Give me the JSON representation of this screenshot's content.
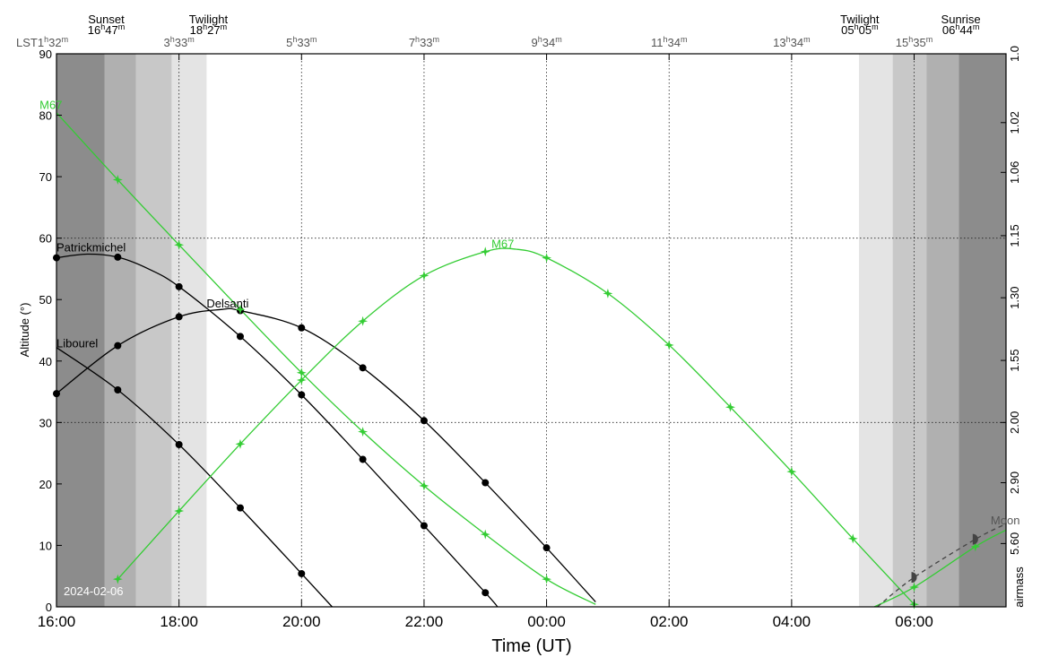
{
  "chart_data": {
    "type": "line",
    "date_label": "2024-02-06",
    "xlabel": "Time (UT)",
    "ylabel": "Altitude (°)",
    "y2label": "airmass",
    "xlim": [
      16.0,
      31.5
    ],
    "ylim": [
      0,
      90
    ],
    "x_ticks": [
      {
        "x": 16,
        "label": "16:00"
      },
      {
        "x": 18,
        "label": "18:00"
      },
      {
        "x": 20,
        "label": "20:00"
      },
      {
        "x": 22,
        "label": "22:00"
      },
      {
        "x": 24,
        "label": "00:00"
      },
      {
        "x": 26,
        "label": "02:00"
      },
      {
        "x": 28,
        "label": "04:00"
      },
      {
        "x": 30,
        "label": "06:00"
      }
    ],
    "y_ticks": [
      0,
      10,
      20,
      30,
      40,
      50,
      60,
      70,
      80,
      90
    ],
    "airmass_ticks": [
      {
        "alt": 90,
        "label": "1.0"
      },
      {
        "alt": 78.8,
        "label": "1.02"
      },
      {
        "alt": 70.7,
        "label": "1.06"
      },
      {
        "alt": 60.4,
        "label": "1.15"
      },
      {
        "alt": 50.3,
        "label": "1.30"
      },
      {
        "alt": 40.1,
        "label": "1.55"
      },
      {
        "alt": 30.0,
        "label": "2.00"
      },
      {
        "alt": 20.2,
        "label": "2.90"
      },
      {
        "alt": 10.3,
        "label": "5.60"
      }
    ],
    "lst_prefix": "LST",
    "lst_ticks": [
      {
        "x": 16.0,
        "h": "1",
        "m": "32"
      },
      {
        "x": 18.0,
        "h": "3",
        "m": "33"
      },
      {
        "x": 20.0,
        "h": "5",
        "m": "33"
      },
      {
        "x": 22.0,
        "h": "7",
        "m": "33"
      },
      {
        "x": 24.0,
        "h": "9",
        "m": "34"
      },
      {
        "x": 26.0,
        "h": "11",
        "m": "34"
      },
      {
        "x": 28.0,
        "h": "13",
        "m": "34"
      },
      {
        "x": 30.0,
        "h": "15",
        "m": "35"
      }
    ],
    "events": [
      {
        "name": "Sunset",
        "x": 16.783,
        "h": "16",
        "m": "47"
      },
      {
        "name": "Twilight",
        "x": 18.45,
        "h": "18",
        "m": "27"
      },
      {
        "name": "Twilight",
        "x": 29.083,
        "h": "05",
        "m": "05"
      },
      {
        "name": "Sunrise",
        "x": 30.733,
        "h": "06",
        "m": "44"
      }
    ],
    "night_bands": [
      {
        "x0": 16.0,
        "x1": 16.783,
        "color": "#8c8c8c"
      },
      {
        "x0": 16.783,
        "x1": 17.3,
        "color": "#b0b0b0"
      },
      {
        "x0": 17.3,
        "x1": 17.88,
        "color": "#c8c8c8"
      },
      {
        "x0": 17.88,
        "x1": 18.45,
        "color": "#e4e4e4"
      },
      {
        "x0": 29.1,
        "x1": 29.65,
        "color": "#e4e4e4"
      },
      {
        "x0": 29.65,
        "x1": 30.2,
        "color": "#c8c8c8"
      },
      {
        "x0": 30.2,
        "x1": 30.73,
        "color": "#b0b0b0"
      },
      {
        "x0": 30.73,
        "x1": 31.5,
        "color": "#8c8c8c"
      }
    ],
    "series": [
      {
        "name": "Patrickmichel",
        "color": "#000000",
        "marker": "circle",
        "curve": [
          [
            16.0,
            56.8
          ],
          [
            16.5,
            57.4
          ],
          [
            17.0,
            56.9
          ],
          [
            17.5,
            55.0
          ],
          [
            18.0,
            52.1
          ],
          [
            19.0,
            44.0
          ],
          [
            20.0,
            34.5
          ],
          [
            21.0,
            24.0
          ],
          [
            22.0,
            13.2
          ],
          [
            23.0,
            2.3
          ],
          [
            23.2,
            0
          ]
        ],
        "points": [
          [
            16.0,
            56.8
          ],
          [
            17.0,
            56.9
          ],
          [
            18.0,
            52.1
          ],
          [
            19.0,
            44.0
          ],
          [
            20.0,
            34.5
          ],
          [
            21.0,
            24.0
          ],
          [
            22.0,
            13.2
          ],
          [
            23.0,
            2.3
          ]
        ]
      },
      {
        "name": "Delsanti",
        "color": "#000000",
        "marker": "circle",
        "curve": [
          [
            16.0,
            34.7
          ],
          [
            17.0,
            42.5
          ],
          [
            18.0,
            47.2
          ],
          [
            18.7,
            48.4
          ],
          [
            19.0,
            48.2
          ],
          [
            20.0,
            45.4
          ],
          [
            21.0,
            38.9
          ],
          [
            22.0,
            30.3
          ],
          [
            23.0,
            20.2
          ],
          [
            24.0,
            9.6
          ],
          [
            24.8,
            0.8
          ]
        ],
        "points": [
          [
            16.0,
            34.7
          ],
          [
            17.0,
            42.5
          ],
          [
            18.0,
            47.2
          ],
          [
            19.0,
            48.2
          ],
          [
            20.0,
            45.4
          ],
          [
            21.0,
            38.9
          ],
          [
            22.0,
            30.3
          ],
          [
            23.0,
            20.2
          ],
          [
            24.0,
            9.6
          ]
        ]
      },
      {
        "name": "Libourel",
        "color": "#000000",
        "marker": "circle",
        "curve": [
          [
            16.0,
            42.2
          ],
          [
            17.0,
            35.3
          ],
          [
            18.0,
            26.4
          ],
          [
            19.0,
            16.1
          ],
          [
            20.0,
            5.4
          ],
          [
            20.5,
            0
          ]
        ],
        "points": [
          [
            17.0,
            35.3
          ],
          [
            18.0,
            26.4
          ],
          [
            19.0,
            16.1
          ],
          [
            20.0,
            5.4
          ]
        ]
      },
      {
        "name": "M67",
        "color": "#33cc33",
        "marker": "star",
        "curve": [
          [
            16.0,
            80.4
          ],
          [
            17.0,
            69.5
          ],
          [
            18.0,
            58.9
          ],
          [
            19.0,
            48.4
          ],
          [
            20.0,
            38.1
          ],
          [
            21.0,
            28.5
          ],
          [
            22.0,
            19.7
          ],
          [
            23.0,
            11.8
          ],
          [
            24.0,
            4.5
          ],
          [
            24.8,
            0.4
          ]
        ],
        "points": [
          [
            17.0,
            69.5
          ],
          [
            18.0,
            58.9
          ],
          [
            19.0,
            48.4
          ],
          [
            20.0,
            38.1
          ],
          [
            21.0,
            28.5
          ],
          [
            22.0,
            19.7
          ],
          [
            23.0,
            11.8
          ],
          [
            24.0,
            4.5
          ]
        ]
      },
      {
        "name": "M67",
        "color": "#33cc33",
        "marker": "star",
        "curve": [
          [
            17.0,
            4.5
          ],
          [
            18.0,
            15.6
          ],
          [
            19.0,
            26.5
          ],
          [
            20.0,
            36.9
          ],
          [
            21.0,
            46.5
          ],
          [
            22.0,
            53.9
          ],
          [
            23.0,
            57.8
          ],
          [
            23.5,
            58.2
          ],
          [
            24.0,
            56.8
          ],
          [
            25.0,
            51.0
          ],
          [
            26.0,
            42.6
          ],
          [
            27.0,
            32.5
          ],
          [
            28.0,
            22.0
          ],
          [
            29.0,
            11.1
          ],
          [
            30.0,
            0.4
          ]
        ],
        "points": [
          [
            17.0,
            4.5
          ],
          [
            18.0,
            15.6
          ],
          [
            19.0,
            26.5
          ],
          [
            20.0,
            36.9
          ],
          [
            21.0,
            46.5
          ],
          [
            22.0,
            53.9
          ],
          [
            23.0,
            57.8
          ],
          [
            24.0,
            56.8
          ],
          [
            25.0,
            51.0
          ],
          [
            26.0,
            42.6
          ],
          [
            27.0,
            32.5
          ],
          [
            28.0,
            22.0
          ],
          [
            29.0,
            11.1
          ],
          [
            30.0,
            0.4
          ]
        ]
      },
      {
        "name": "M67",
        "color": "#33cc33",
        "marker": "star",
        "curve": [
          [
            29.35,
            0
          ],
          [
            30.0,
            3.2
          ],
          [
            31.0,
            9.8
          ],
          [
            31.5,
            12.5
          ]
        ],
        "points": [
          [
            30.0,
            3.2
          ],
          [
            31.0,
            9.8
          ]
        ]
      },
      {
        "name": "Moon",
        "color": "#444444",
        "marker": "halfmoon",
        "dashed": true,
        "curve": [
          [
            29.4,
            0
          ],
          [
            30.0,
            4.8
          ],
          [
            31.0,
            11.0
          ],
          [
            31.5,
            13.5
          ]
        ],
        "points": [
          [
            30.0,
            4.8
          ],
          [
            31.0,
            11.0
          ]
        ]
      }
    ],
    "series_labels": [
      {
        "text": "Patrickmichel",
        "x": 16.0,
        "y": 57.8,
        "color": "#000000"
      },
      {
        "text": "Delsanti",
        "x": 18.45,
        "y": 48.7,
        "color": "#000000"
      },
      {
        "text": "Libourel",
        "x": 16.0,
        "y": 42.2,
        "color": "#000000"
      },
      {
        "text": "M67",
        "x": 15.9,
        "y": 81.0,
        "color": "#33cc33"
      },
      {
        "text": "M67",
        "x": 23.1,
        "y": 58.4,
        "color": "#33cc33"
      },
      {
        "text": "Moon",
        "x": 31.25,
        "y": 13.4,
        "color": "#555555"
      }
    ]
  }
}
